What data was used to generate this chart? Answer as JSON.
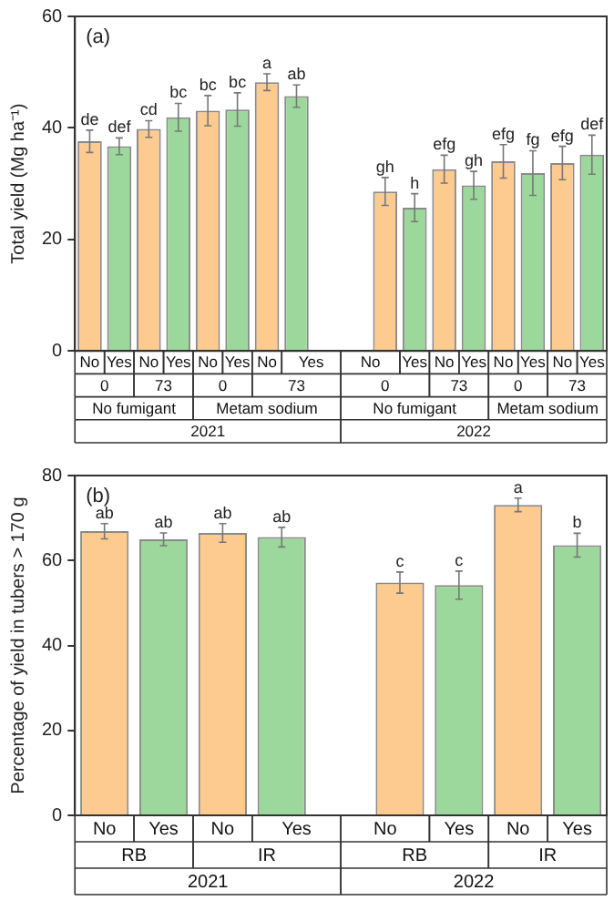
{
  "chart_data": [
    {
      "type": "bar",
      "title": "(a)",
      "ylabel": "Total yield (Mg ha⁻¹)",
      "categories": [
        "No",
        "Yes",
        "No",
        "Yes",
        "No",
        "Yes",
        "No",
        "Yes",
        null,
        null,
        "No",
        "Yes",
        "No",
        "Yes",
        "No",
        "Yes",
        "No",
        "Yes"
      ],
      "values": [
        37.6,
        36.7,
        39.8,
        41.9,
        43.1,
        43.3,
        48.2,
        45.7,
        null,
        null,
        28.6,
        25.7,
        32.6,
        29.7,
        34.0,
        31.9,
        33.7,
        35.2
      ],
      "colors": [
        "#fdca8f",
        "#9cd89b",
        "#fdca8f",
        "#9cd89b",
        "#fdca8f",
        "#9cd89b",
        "#fdca8f",
        "#9cd89b",
        null,
        null,
        "#fdca8f",
        "#9cd89b",
        "#fdca8f",
        "#9cd89b",
        "#fdca8f",
        "#9cd89b",
        "#fdca8f",
        "#9cd89b"
      ],
      "errors": [
        2,
        1.5,
        1.5,
        2.5,
        2.7,
        3,
        1.5,
        2,
        null,
        null,
        2.5,
        2.5,
        2.5,
        2.5,
        3,
        4,
        3,
        3.5
      ],
      "value_labels": [
        "de",
        "def",
        "cd",
        "bc",
        "bc",
        "bc",
        "a",
        "ab",
        null,
        null,
        "gh",
        "h",
        "efg",
        "gh",
        "efg",
        "fg",
        "efg",
        "def"
      ],
      "annotations": [
        "0",
        "73",
        "0",
        "73",
        "0",
        "73",
        "0",
        "73",
        "No fumigant",
        "Metam sodium",
        "No fumigant",
        "Metam sodium",
        "2021",
        "2022"
      ],
      "ylim": [
        0,
        60
      ],
      "yticks": [
        0,
        20,
        40,
        60
      ]
    },
    {
      "type": "bar",
      "title": "(b)",
      "ylabel": "Percentage of yield in tubers > 170 g",
      "categories": [
        "No",
        "Yes",
        "No",
        "Yes",
        null,
        "No",
        "Yes",
        "No",
        "Yes"
      ],
      "values": [
        66.9,
        65.0,
        66.5,
        65.5,
        null,
        54.8,
        54.2,
        73.1,
        63.6
      ],
      "colors": [
        "#fdca8f",
        "#9cd89b",
        "#fdca8f",
        "#9cd89b",
        null,
        "#fdca8f",
        "#9cd89b",
        "#fdca8f",
        "#9cd89b"
      ],
      "errors": [
        1.8,
        1.5,
        2.2,
        2.3,
        null,
        2.5,
        3.3,
        1.6,
        2.8
      ],
      "value_labels": [
        "ab",
        "ab",
        "ab",
        "ab",
        null,
        "c",
        "c",
        "a",
        "b"
      ],
      "annotations": [
        "RB",
        "IR",
        "RB",
        "IR",
        "2021",
        "2022"
      ],
      "ylim": [
        0,
        80
      ],
      "yticks": [
        0,
        20,
        40,
        60,
        80
      ]
    }
  ]
}
